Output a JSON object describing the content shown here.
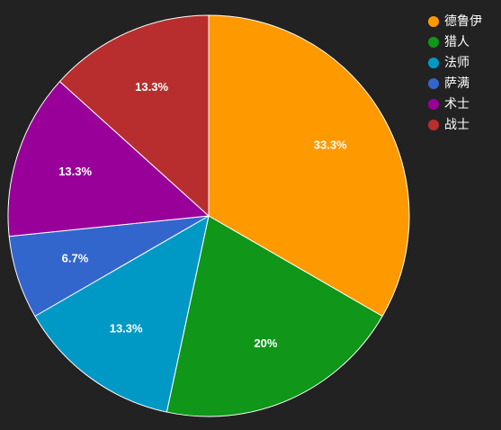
{
  "chart_data": {
    "type": "pie",
    "title": "",
    "categories": [
      "德鲁伊",
      "猎人",
      "法师",
      "萨满",
      "术士",
      "战士"
    ],
    "values": [
      33.3,
      20,
      13.3,
      6.7,
      13.3,
      13.3
    ],
    "data_labels": [
      "33.3%",
      "20%",
      "13.3%",
      "6.7%",
      "13.3%",
      "13.3%"
    ],
    "colors": [
      "#ff9900",
      "#109618",
      "#0099c6",
      "#3366cc",
      "#990099",
      "#b82e2e"
    ],
    "start_angle_deg": 0,
    "direction": "clockwise",
    "legend_position": "top-right",
    "background": "#222222",
    "slice_border_color": "#ffffff"
  }
}
